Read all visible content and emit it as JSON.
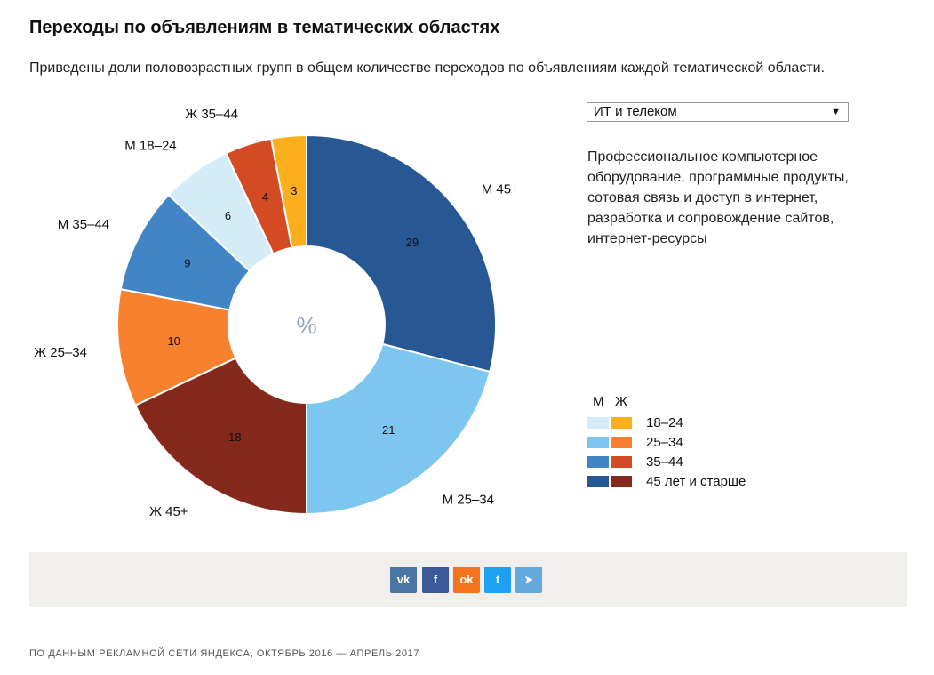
{
  "header": {
    "title": "Переходы по объявлениям в тематических областях",
    "subtitle": "Приведены доли половозрастных групп в общем количестве переходов по объявлениям каждой тематической области."
  },
  "controls": {
    "category_selected": "ИТ и телеком",
    "description": "Профессиональное компьютерное оборудование, программные продукты, сотовая связь и доступ в интернет, разработка и сопровождение сайтов, интернет-ресурсы"
  },
  "legend": {
    "male_header": "М",
    "female_header": "Ж",
    "rows": [
      {
        "label": "18–24",
        "male_color": "#d3ecf7",
        "female_color": "#fbaf1c"
      },
      {
        "label": "25–34",
        "male_color": "#7dc6ef",
        "female_color": "#f7812f"
      },
      {
        "label": "35–44",
        "male_color": "#4285c7",
        "female_color": "#d44a22"
      },
      {
        "label": "45 лет и старше",
        "male_color": "#275894",
        "female_color": "#85291c"
      }
    ]
  },
  "chart_data": {
    "type": "pie",
    "donut": true,
    "center_label": "%",
    "slices": [
      {
        "name": "М 45+",
        "value": 29,
        "color": "#275894"
      },
      {
        "name": "М 25–34",
        "value": 21,
        "color": "#7dc6ef"
      },
      {
        "name": "Ж 45+",
        "value": 18,
        "color": "#85291c"
      },
      {
        "name": "Ж 25–34",
        "value": 10,
        "color": "#f7812f"
      },
      {
        "name": "М 35–44",
        "value": 9,
        "color": "#4285c7"
      },
      {
        "name": "М 18–24",
        "value": 6,
        "color": "#d3ecf7"
      },
      {
        "name": "Ж 35–44",
        "value": 4,
        "color": "#d44a22"
      },
      {
        "name": "",
        "value": 3,
        "color": "#fbaf1c"
      }
    ]
  },
  "share": {
    "buttons": [
      {
        "icon": "vk-icon",
        "text": "vk",
        "color": "#4c75a3"
      },
      {
        "icon": "facebook-icon",
        "text": "f",
        "color": "#3b5998"
      },
      {
        "icon": "odnoklassniki-icon",
        "text": "ok",
        "color": "#f4731c"
      },
      {
        "icon": "twitter-icon",
        "text": "t",
        "color": "#1da1f2"
      },
      {
        "icon": "telegram-icon",
        "text": "➤",
        "color": "#64a9dc"
      }
    ]
  },
  "footer": {
    "source": "ПО ДАННЫМ РЕКЛАМНОЙ СЕТИ ЯНДЕКСА, ОКТЯБРЬ 2016 — АПРЕЛЬ 2017"
  }
}
